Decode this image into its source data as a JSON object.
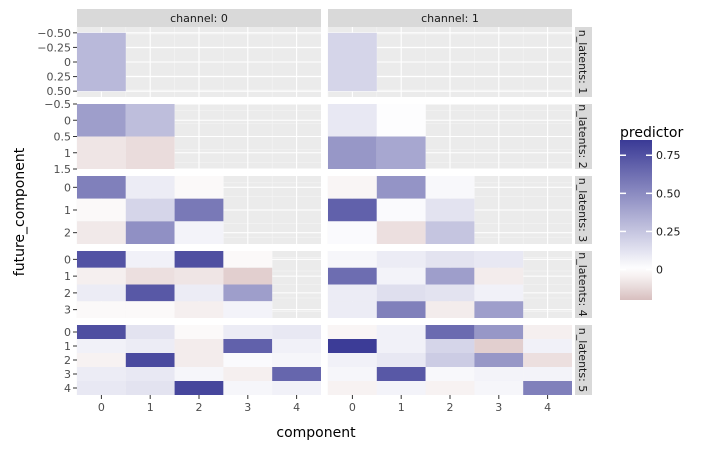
{
  "chart_data": {
    "type": "heatmap",
    "xlabel": "component",
    "ylabel": "future_component",
    "legend": {
      "title": "predictor",
      "ticks": [
        0,
        0.25,
        0.5,
        0.75
      ],
      "tick_labels": [
        "0",
        "0.25",
        "0.50",
        "0.75"
      ],
      "range": [
        -0.2,
        0.85
      ],
      "low_color": "#D8BFBF",
      "mid_color": "#FFFFFF",
      "high_color": "#3A3A96",
      "placement": "right"
    },
    "x_ticks": [
      0,
      1,
      2,
      3,
      4
    ],
    "x_tick_labels": [
      "0",
      "1",
      "2",
      "3",
      "4"
    ],
    "col_strips": [
      "channel: 0",
      "channel: 1"
    ],
    "row_strips": [
      "n_latents: 1",
      "n_latents: 2",
      "n_latents: 3",
      "n_latents: 4",
      "n_latents: 5"
    ],
    "grid": true,
    "xlim": [
      -0.5,
      4.5
    ],
    "rows": [
      {
        "ylim": [
          -0.6,
          0.6
        ],
        "y_ticks": [
          -0.5,
          -0.25,
          0,
          0.25,
          0.5
        ],
        "y_tick_labels": [
          "−0.50",
          "−0.25",
          "0",
          "0.25",
          "0.50"
        ],
        "panels": [
          [
            [
              0.3
            ]
          ],
          [
            [
              0.18
            ]
          ]
        ]
      },
      {
        "ylim": [
          -0.5,
          1.5
        ],
        "y_ticks": [
          -0.5,
          0,
          0.5,
          1,
          1.5
        ],
        "y_tick_labels": [
          "−0.5",
          "0",
          "0.5",
          "1",
          "1.5"
        ],
        "panels": [
          [
            [
              0.42,
              0.28
            ],
            [
              -0.08,
              -0.11
            ]
          ],
          [
            [
              0.1,
              0.01
            ],
            [
              0.45,
              0.38
            ]
          ]
        ]
      },
      {
        "ylim": [
          -0.5,
          2.5
        ],
        "y_ticks": [
          0,
          1,
          2
        ],
        "y_tick_labels": [
          "0",
          "1",
          "2"
        ],
        "panels": [
          [
            [
              0.55,
              0.08,
              -0.02
            ],
            [
              -0.02,
              0.18,
              0.58
            ],
            [
              -0.07,
              0.48,
              0.05
            ]
          ],
          [
            [
              -0.03,
              0.46,
              0.03
            ],
            [
              0.68,
              0.02,
              0.12
            ],
            [
              0.02,
              -0.1,
              0.25
            ]
          ]
        ]
      },
      {
        "ylim": [
          -0.5,
          3.5
        ],
        "y_ticks": [
          0,
          1,
          2,
          3
        ],
        "y_tick_labels": [
          "0",
          "1",
          "2",
          "3"
        ],
        "panels": [
          [
            [
              0.74,
              0.06,
              0.76,
              -0.02
            ],
            [
              -0.05,
              -0.1,
              -0.08,
              -0.15
            ],
            [
              0.08,
              0.72,
              0.08,
              0.42
            ],
            [
              -0.02,
              -0.02,
              -0.05,
              0.05
            ]
          ],
          [
            [
              0.04,
              0.08,
              0.12,
              0.1
            ],
            [
              0.63,
              0.05,
              0.42,
              -0.06
            ],
            [
              0.08,
              0.14,
              0.12,
              0.06
            ],
            [
              0.08,
              0.55,
              -0.06,
              0.42
            ]
          ]
        ]
      },
      {
        "ylim": [
          -0.5,
          4.5
        ],
        "y_ticks": [
          0,
          1,
          2,
          3,
          4
        ],
        "y_tick_labels": [
          "0",
          "1",
          "2",
          "3",
          "4"
        ],
        "panels": [
          [
            [
              0.76,
              0.12,
              -0.02,
              0.08,
              0.1
            ],
            [
              0.06,
              0.08,
              -0.06,
              0.68,
              0.06
            ],
            [
              -0.04,
              0.78,
              -0.06,
              0.02,
              0.04
            ],
            [
              0.08,
              0.1,
              0.04,
              -0.05,
              0.66
            ],
            [
              0.1,
              0.12,
              0.8,
              0.04,
              0.06
            ]
          ],
          [
            [
              -0.03,
              0.06,
              0.64,
              0.45,
              -0.05
            ],
            [
              0.84,
              0.06,
              0.18,
              -0.15,
              0.06
            ],
            [
              0.06,
              0.1,
              0.22,
              0.45,
              -0.1
            ],
            [
              0.04,
              0.72,
              0.03,
              0.05,
              0.05
            ],
            [
              -0.04,
              0.05,
              -0.04,
              0.04,
              0.55
            ]
          ]
        ]
      }
    ]
  }
}
